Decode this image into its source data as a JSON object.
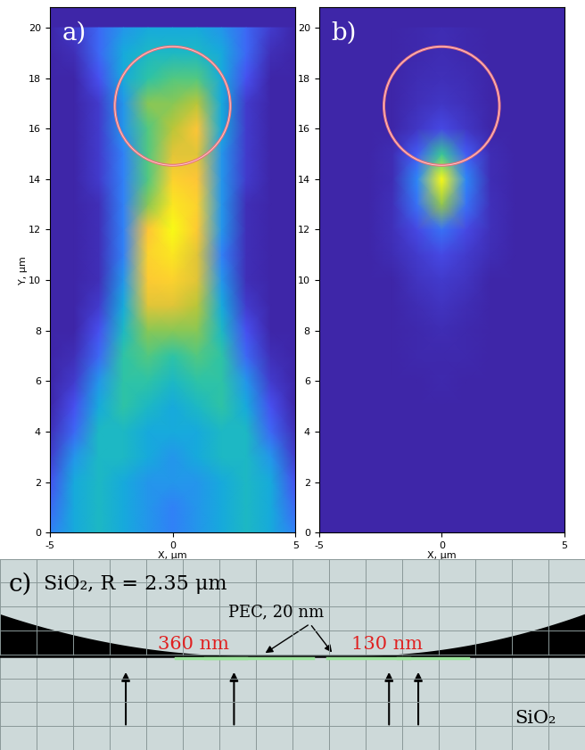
{
  "chart_data": [
    {
      "type": "heatmap",
      "label": "a)",
      "xlabel": "X, μm",
      "ylabel": "Y, μm",
      "xlim": [
        -5,
        5
      ],
      "ylim": [
        0,
        20.8
      ],
      "xticks": [
        -5,
        0,
        5
      ],
      "yticks": [
        0,
        2,
        4,
        6,
        8,
        10,
        12,
        14,
        16,
        18,
        20
      ],
      "circle": {
        "x": 0,
        "y": 16.9,
        "r": 2.35
      },
      "x": [
        -5,
        -4,
        -3,
        -2,
        -1,
        0,
        1,
        2,
        3,
        4,
        5
      ],
      "y": [
        0,
        1,
        2,
        3,
        4,
        5,
        6,
        7,
        8,
        9,
        10,
        11,
        12,
        13,
        14,
        15,
        16,
        17,
        18,
        19,
        20
      ],
      "values": [
        [
          0.2,
          0.3,
          0.35,
          0.3,
          0.25,
          0.2,
          0.25,
          0.3,
          0.35,
          0.3,
          0.2
        ],
        [
          0.15,
          0.3,
          0.35,
          0.3,
          0.25,
          0.2,
          0.25,
          0.3,
          0.35,
          0.3,
          0.15
        ],
        [
          0.1,
          0.3,
          0.35,
          0.3,
          0.25,
          0.25,
          0.25,
          0.3,
          0.35,
          0.3,
          0.1
        ],
        [
          0.05,
          0.25,
          0.35,
          0.35,
          0.3,
          0.25,
          0.3,
          0.35,
          0.35,
          0.25,
          0.05
        ],
        [
          0.02,
          0.15,
          0.35,
          0.35,
          0.3,
          0.3,
          0.3,
          0.35,
          0.35,
          0.15,
          0.02
        ],
        [
          0,
          0.1,
          0.3,
          0.4,
          0.35,
          0.3,
          0.35,
          0.4,
          0.3,
          0.1,
          0
        ],
        [
          0,
          0.05,
          0.25,
          0.4,
          0.4,
          0.35,
          0.4,
          0.4,
          0.25,
          0.05,
          0
        ],
        [
          0,
          0.02,
          0.15,
          0.4,
          0.45,
          0.4,
          0.45,
          0.4,
          0.15,
          0.02,
          0
        ],
        [
          0,
          0,
          0.1,
          0.35,
          0.5,
          0.5,
          0.5,
          0.35,
          0.1,
          0,
          0
        ],
        [
          0,
          0,
          0.05,
          0.3,
          0.6,
          0.6,
          0.55,
          0.3,
          0.05,
          0,
          0
        ],
        [
          0,
          0,
          0.02,
          0.25,
          0.7,
          0.75,
          0.6,
          0.25,
          0.02,
          0,
          0
        ],
        [
          0,
          0,
          0.02,
          0.2,
          0.75,
          0.8,
          0.6,
          0.2,
          0.02,
          0,
          0
        ],
        [
          0,
          0,
          0.02,
          0.2,
          0.65,
          0.85,
          0.7,
          0.25,
          0.02,
          0,
          0
        ],
        [
          0,
          0,
          0.02,
          0.2,
          0.5,
          0.8,
          0.75,
          0.25,
          0.02,
          0,
          0
        ],
        [
          0,
          0,
          0.05,
          0.2,
          0.45,
          0.75,
          0.65,
          0.25,
          0.05,
          0,
          0
        ],
        [
          0,
          0,
          0.05,
          0.2,
          0.45,
          0.6,
          0.6,
          0.25,
          0.05,
          0,
          0
        ],
        [
          0,
          0,
          0.05,
          0.25,
          0.45,
          0.55,
          0.65,
          0.3,
          0.05,
          0,
          0
        ],
        [
          0,
          0,
          0.05,
          0.25,
          0.5,
          0.5,
          0.55,
          0.3,
          0.05,
          0,
          0
        ],
        [
          0,
          0,
          0.1,
          0.3,
          0.4,
          0.45,
          0.45,
          0.3,
          0.1,
          0,
          0
        ],
        [
          0,
          0.02,
          0.15,
          0.3,
          0.35,
          0.35,
          0.35,
          0.3,
          0.15,
          0.02,
          0
        ],
        [
          0,
          0.05,
          0.15,
          0.25,
          0.3,
          0.3,
          0.3,
          0.25,
          0.15,
          0.05,
          0
        ]
      ]
    },
    {
      "type": "heatmap",
      "label": "b)",
      "xlabel": "X, μm",
      "xlim": [
        -5,
        5
      ],
      "ylim": [
        0,
        20.8
      ],
      "xticks": [
        -5,
        0,
        5
      ],
      "yticks": [
        0,
        2,
        4,
        6,
        8,
        10,
        12,
        14,
        16,
        18,
        20
      ],
      "circle": {
        "x": 0,
        "y": 16.9,
        "r": 2.35
      },
      "x": [
        -5,
        -4,
        -3,
        -2,
        -1,
        0,
        1,
        2,
        3,
        4,
        5
      ],
      "y": [
        0,
        1,
        2,
        3,
        4,
        5,
        6,
        7,
        8,
        9,
        10,
        11,
        12,
        13,
        14,
        15,
        16,
        17,
        18,
        19,
        20
      ],
      "values": [
        [
          0,
          0,
          0,
          0,
          0,
          0,
          0,
          0,
          0,
          0,
          0
        ],
        [
          0,
          0,
          0,
          0,
          0,
          0,
          0,
          0,
          0,
          0,
          0
        ],
        [
          0,
          0,
          0,
          0,
          0,
          0,
          0,
          0,
          0,
          0,
          0
        ],
        [
          0,
          0,
          0,
          0,
          0,
          0,
          0,
          0,
          0,
          0,
          0
        ],
        [
          0,
          0,
          0,
          0,
          0,
          0,
          0,
          0,
          0,
          0,
          0
        ],
        [
          0,
          0,
          0,
          0,
          0,
          0,
          0,
          0,
          0,
          0,
          0
        ],
        [
          0,
          0,
          0,
          0,
          0,
          0.01,
          0,
          0,
          0,
          0,
          0
        ],
        [
          0,
          0,
          0,
          0,
          0.01,
          0.01,
          0.01,
          0,
          0,
          0,
          0
        ],
        [
          0,
          0,
          0,
          0,
          0.01,
          0.02,
          0.01,
          0,
          0,
          0,
          0
        ],
        [
          0,
          0,
          0,
          0,
          0.02,
          0.04,
          0.02,
          0,
          0,
          0,
          0
        ],
        [
          0,
          0,
          0,
          0,
          0.04,
          0.06,
          0.04,
          0,
          0,
          0,
          0
        ],
        [
          0,
          0,
          0,
          0.02,
          0.06,
          0.1,
          0.06,
          0.02,
          0,
          0,
          0
        ],
        [
          0,
          0,
          0,
          0.03,
          0.1,
          0.2,
          0.1,
          0.03,
          0,
          0,
          0
        ],
        [
          0,
          0,
          0,
          0.03,
          0.2,
          0.6,
          0.2,
          0.03,
          0,
          0,
          0
        ],
        [
          0,
          0,
          0,
          0.02,
          0.25,
          1.0,
          0.25,
          0.02,
          0,
          0,
          0
        ],
        [
          0,
          0,
          0,
          0.02,
          0.15,
          0.5,
          0.15,
          0.02,
          0,
          0,
          0
        ],
        [
          0,
          0,
          0,
          0,
          0.05,
          0.1,
          0.05,
          0,
          0,
          0,
          0
        ],
        [
          0,
          0,
          0,
          0,
          0.03,
          0.05,
          0.03,
          0,
          0,
          0,
          0
        ],
        [
          0,
          0,
          0,
          0,
          0.02,
          0.03,
          0.02,
          0,
          0,
          0,
          0
        ],
        [
          0,
          0,
          0,
          0,
          0.01,
          0.02,
          0.01,
          0,
          0,
          0,
          0
        ],
        [
          0,
          0,
          0,
          0,
          0.01,
          0.02,
          0.01,
          0,
          0,
          0,
          0
        ]
      ]
    }
  ],
  "diagram": {
    "label": "c)",
    "title": "SiO₂, R = 2.35 μm",
    "pec_label": "PEC, 20 nm",
    "gap_left": "360 nm",
    "gap_right": "130 nm",
    "substrate": "SiO₂"
  }
}
